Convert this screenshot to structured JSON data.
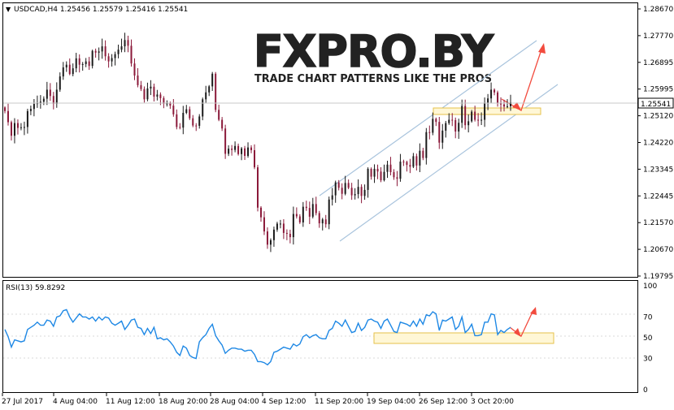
{
  "header": {
    "arrow": "▼",
    "symbol_line": "USDCAD,H4  1.25456  1.25579  1.25416  1.25541"
  },
  "watermark": {
    "logo": "FXPRO.BY",
    "tagline": "TRADE CHART PATTERNS LIKE THE PROS"
  },
  "colors": {
    "bull": "#1a1a1a",
    "bear": "#8b1a3a",
    "rsi": "#1e88e5",
    "channel": "#a9c4dd",
    "zone_stroke": "#e6c24a",
    "zone_fill": "#fff7d6",
    "arrow": "#f24b3e",
    "price_tag_bg": "#ffffff",
    "grid": "#e4e4e4"
  },
  "chart_data": [
    {
      "type": "candlestick",
      "series_name": "USDCAD,H4",
      "ohlc_last": {
        "open": 1.25456,
        "high": 1.25579,
        "low": 1.25416,
        "close": 1.25541
      },
      "y_ticks": [
        "1.28670",
        "1.27770",
        "1.26895",
        "1.25995",
        "1.25120",
        "1.24220",
        "1.23345",
        "1.22445",
        "1.21570",
        "1.20670",
        "1.19795"
      ],
      "ylim": [
        1.19795,
        1.2867
      ],
      "current_price": "1.25541",
      "x_ticks": [
        "27 Jul 2017",
        "4 Aug 04:00",
        "11 Aug 12:00",
        "18 Aug 20:00",
        "28 Aug 04:00",
        "4 Sep 12:00",
        "11 Sep 20:00",
        "19 Sep 04:00",
        "26 Sep 12:00",
        "3 Oct 20:00"
      ],
      "closes": [
        1.2525,
        1.2488,
        1.2443,
        1.2485,
        1.2469,
        1.2471,
        1.2472,
        1.2525,
        1.2532,
        1.2549,
        1.2551,
        1.2556,
        1.2566,
        1.2596,
        1.2575,
        1.2549,
        1.2596,
        1.264,
        1.267,
        1.2679,
        1.2648,
        1.2667,
        1.27,
        1.2679,
        1.2681,
        1.269,
        1.2675,
        1.2725,
        1.2719,
        1.2723,
        1.274,
        1.2707,
        1.269,
        1.2701,
        1.2714,
        1.2729,
        1.274,
        1.2761,
        1.2742,
        1.2683,
        1.2643,
        1.2611,
        1.2598,
        1.2564,
        1.26,
        1.2606,
        1.2573,
        1.258,
        1.2568,
        1.2549,
        1.255,
        1.2543,
        1.2514,
        1.2472,
        1.247,
        1.2519,
        1.2531,
        1.2501,
        1.2477,
        1.2476,
        1.2507,
        1.2564,
        1.2587,
        1.2607,
        1.2649,
        1.2529,
        1.2496,
        1.2467,
        1.2383,
        1.24,
        1.2396,
        1.2409,
        1.2382,
        1.2401,
        1.2376,
        1.2404,
        1.2395,
        1.2338,
        1.2204,
        1.2172,
        1.2125,
        1.2081,
        1.2096,
        1.2131,
        1.2151,
        1.2151,
        1.212,
        1.2117,
        1.2106,
        1.2183,
        1.2175,
        1.2155,
        1.2207,
        1.2203,
        1.2174,
        1.2216,
        1.2186,
        1.2152,
        1.2165,
        1.2149,
        1.2231,
        1.2245,
        1.2288,
        1.227,
        1.225,
        1.2286,
        1.227,
        1.2245,
        1.2249,
        1.2273,
        1.2243,
        1.2263,
        1.2333,
        1.2307,
        1.2333,
        1.2324,
        1.2295,
        1.2323,
        1.2347,
        1.2322,
        1.2305,
        1.23,
        1.2357,
        1.2356,
        1.2346,
        1.234,
        1.2375,
        1.2344,
        1.2393,
        1.2369,
        1.2455,
        1.2453,
        1.2499,
        1.2489,
        1.242,
        1.246,
        1.2485,
        1.2496,
        1.2495,
        1.2457,
        1.2486,
        1.2542,
        1.2478,
        1.2491,
        1.2523,
        1.2496,
        1.2494,
        1.2496,
        1.2553,
        1.2567,
        1.2596,
        1.2587,
        1.2551,
        1.2547,
        1.254,
        1.2541,
        1.2554
      ]
    },
    {
      "type": "line",
      "series_name": "RSI(13) 59.8292",
      "y_ticks": [
        "100",
        "70",
        "50",
        "30",
        "0"
      ],
      "ylim": [
        0,
        100
      ],
      "values": [
        58,
        51,
        41,
        48,
        47,
        46,
        47,
        58,
        60,
        62,
        65,
        62,
        62,
        67,
        66,
        61,
        70,
        71,
        76,
        77,
        70,
        65,
        69,
        73,
        70,
        70,
        68,
        70,
        66,
        70,
        67,
        70,
        69,
        64,
        62,
        64,
        66,
        58,
        62,
        67,
        68,
        60,
        59,
        53,
        59,
        54,
        60,
        49,
        50,
        48,
        49,
        46,
        42,
        36,
        33,
        42,
        40,
        33,
        31,
        30,
        46,
        50,
        53,
        59,
        63,
        52,
        47,
        43,
        35,
        38,
        40,
        40,
        39,
        39,
        37,
        38,
        38,
        34,
        27,
        27,
        26,
        24,
        27,
        36,
        37,
        39,
        41,
        40,
        39,
        44,
        42,
        44,
        51,
        53,
        50,
        52,
        53,
        50,
        49,
        49,
        57,
        59,
        66,
        64,
        61,
        67,
        61,
        55,
        56,
        64,
        57,
        60,
        67,
        68,
        66,
        65,
        59,
        66,
        68,
        62,
        56,
        55,
        65,
        64,
        63,
        61,
        66,
        61,
        68,
        63,
        72,
        71,
        75,
        73,
        57,
        67,
        66,
        68,
        70,
        58,
        61,
        70,
        55,
        58,
        63,
        52,
        52,
        53,
        65,
        65,
        73,
        72,
        53,
        57,
        55,
        58,
        60
      ]
    }
  ]
}
